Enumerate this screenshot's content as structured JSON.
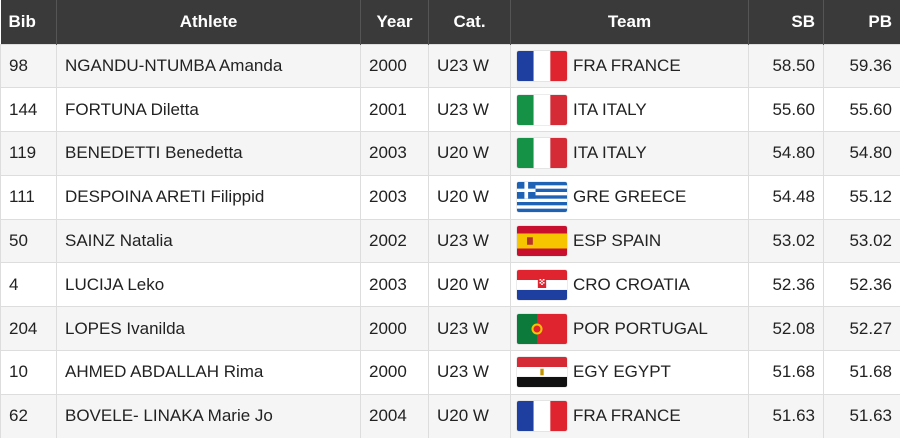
{
  "table": {
    "headers": [
      "Bib",
      "Athlete",
      "Year",
      "Cat.",
      "Team",
      "SB",
      "PB"
    ],
    "rows": [
      [
        "98",
        "NGANDU-NTUMBA Amanda",
        "2000",
        "U23 W",
        "FRA FRANCE",
        "58.50",
        "59.36"
      ],
      [
        "144",
        "FORTUNA Diletta",
        "2001",
        "U23 W",
        "ITA ITALY",
        "55.60",
        "55.60"
      ],
      [
        "119",
        "BENEDETTI Benedetta",
        "2003",
        "U20 W",
        "ITA ITALY",
        "54.80",
        "54.80"
      ],
      [
        "111",
        "DESPOINA ARETI Filippid",
        "2003",
        "U20 W",
        "GRE GREECE",
        "54.48",
        "55.12"
      ],
      [
        "50",
        "SAINZ Natalia",
        "2002",
        "U23 W",
        "ESP SPAIN",
        "53.02",
        "53.02"
      ],
      [
        "4",
        "LUCIJA Leko",
        "2003",
        "U20 W",
        "CRO CROATIA",
        "52.36",
        "52.36"
      ],
      [
        "204",
        "LOPES Ivanilda",
        "2000",
        "U23 W",
        "POR PORTUGAL",
        "52.08",
        "52.27"
      ],
      [
        "10",
        "AHMED ABDALLAH Rima",
        "2000",
        "U23 W",
        "EGY EGYPT",
        "51.68",
        "51.68"
      ],
      [
        "62",
        "BOVELE- LINAKA Marie Jo",
        "2004",
        "U20 W",
        "FRA FRANCE",
        "51.63",
        "51.63"
      ]
    ]
  }
}
